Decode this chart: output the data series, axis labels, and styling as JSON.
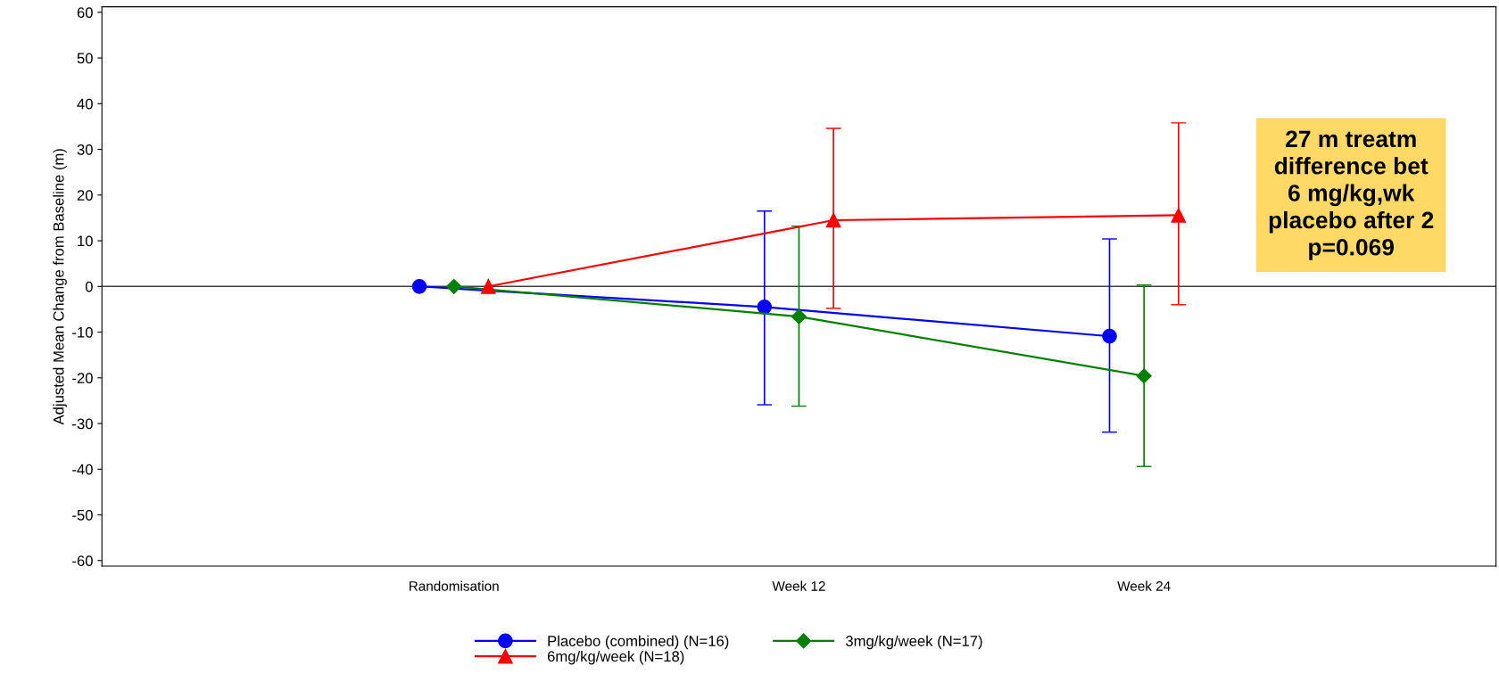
{
  "chart_data": {
    "type": "line",
    "ylabel": "Adjusted Mean Change from Baseline (m)",
    "categories": [
      "Randomisation",
      "Week 12",
      "Week 24"
    ],
    "ylim": [
      -61.2,
      61.2
    ],
    "yticks": [
      -60,
      -50,
      -40,
      -30,
      -20,
      -10,
      0,
      10,
      20,
      30,
      40,
      50,
      60
    ],
    "series": [
      {
        "name": "Placebo (combined) (N=16)",
        "color": "#0000ff",
        "marker": "circle",
        "values": [
          0,
          -4.5,
          -10.9
        ],
        "errors": [
          null,
          [
            -25.9,
            16.5
          ],
          [
            -31.9,
            10.4
          ]
        ]
      },
      {
        "name": "3mg/kg/week (N=17)",
        "color": "#008000",
        "marker": "diamond",
        "values": [
          0,
          -6.6,
          -19.6
        ],
        "errors": [
          null,
          [
            -26.2,
            13.2
          ],
          [
            -39.4,
            0.3
          ]
        ]
      },
      {
        "name": "6mg/kg/week (N=18)",
        "color": "#ff0000",
        "marker": "triangle",
        "values": [
          0,
          14.5,
          15.6
        ],
        "errors": [
          null,
          [
            -4.8,
            34.6
          ],
          [
            -4.0,
            35.8
          ]
        ]
      }
    ],
    "ref_lines": [
      {
        "axis": "y",
        "value": 0,
        "color": "#404040"
      }
    ],
    "annotations": [
      "27 m treatm\ndifference bet\n6 mg/kg,wk\nplacebo after 2\np=0.069"
    ],
    "legend": "bottom",
    "grid": false
  }
}
